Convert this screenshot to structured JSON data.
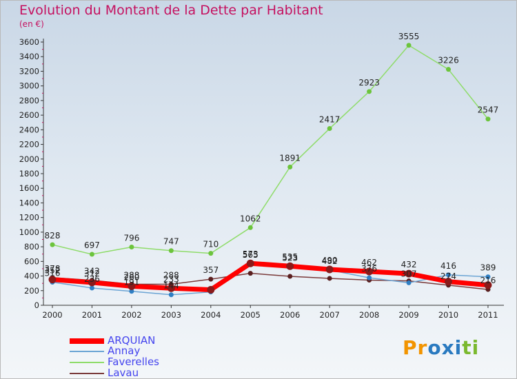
{
  "title": "Evolution du Montant de la Dette par Habitant",
  "subtitle": "(en €)",
  "logo": {
    "text": "Proxiti",
    "letter_colors": [
      "#f29400",
      "#f29400",
      "#2a7ac0",
      "#2a7ac0",
      "#2a7ac0",
      "#7bb92f",
      "#7bb92f"
    ]
  },
  "chart_data": {
    "type": "line",
    "title": "Evolution du Montant de la Dette par Habitant",
    "subtitle": "(en €)",
    "xlabel": "",
    "ylabel": "",
    "x": [
      "2000",
      "2001",
      "2002",
      "2003",
      "2004",
      "2005",
      "2006",
      "2007",
      "2008",
      "2009",
      "2010",
      "2011"
    ],
    "ylim": [
      0,
      3600
    ],
    "yticks": [
      0,
      200,
      400,
      600,
      800,
      1000,
      1200,
      1400,
      1600,
      1800,
      2000,
      2200,
      2400,
      2600,
      2800,
      3000,
      3200,
      3400,
      3600
    ],
    "grid": false,
    "legend_position": "bottom-left",
    "series": [
      {
        "name": "ARQUIAN",
        "color": "#ff0000",
        "values": [
          352,
          312,
          260,
          233,
          212,
          573,
          535,
          490,
          462,
          432,
          324,
          276
        ],
        "labels": [
          "352",
          "312",
          "260",
          "233",
          "",
          "573",
          "535",
          "490",
          "462",
          "432",
          "",
          ""
        ]
      },
      {
        "name": "Annay",
        "color": "#6ba4d4",
        "values": [
          316,
          236,
          191,
          144,
          182,
          565,
          523,
          482,
          376,
          307,
          416,
          389
        ],
        "labels": [
          "316",
          "236",
          "191",
          "144",
          "",
          "565",
          "523",
          "482",
          "376",
          "307",
          "416",
          "389"
        ]
      },
      {
        "name": "Faverelles",
        "color": "#8fdc6a",
        "values": [
          828,
          697,
          796,
          747,
          710,
          1062,
          1891,
          2417,
          2923,
          3555,
          3226,
          2547
        ],
        "labels": [
          "828",
          "697",
          "796",
          "747",
          "710",
          "1062",
          "1891",
          "2417",
          "2923",
          "3555",
          "3226",
          "2547"
        ]
      },
      {
        "name": "Lavau",
        "color": "#7a3a3a",
        "values": [
          378,
          342,
          288,
          288,
          357,
          437,
          396,
          368,
          344,
          333,
          274,
          216
        ],
        "labels": [
          "378",
          "342",
          "288",
          "288",
          "357",
          "",
          "",
          "",
          "",
          "",
          "274",
          "216"
        ]
      }
    ]
  }
}
